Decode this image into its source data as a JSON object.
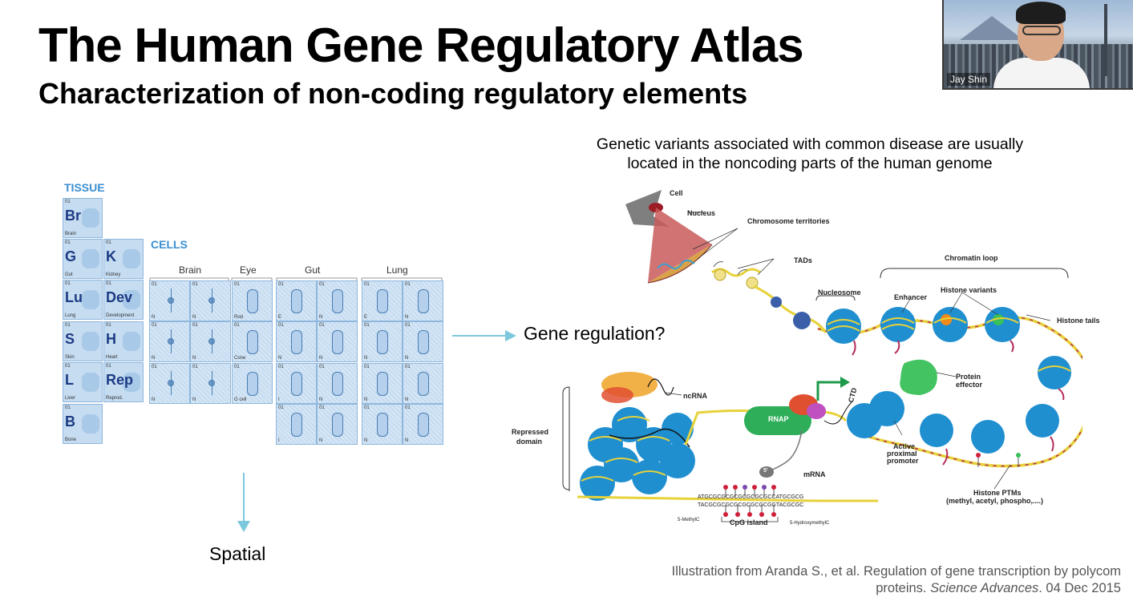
{
  "slide": {
    "title": "The Human Gene Regulatory Atlas",
    "subtitle": "Characterization of non-coding regulatory elements",
    "genetic_text_line1": "Genetic variants associated with common disease are usually",
    "genetic_text_line2": "located in the noncoding parts of the human genome",
    "gene_regulation": "Gene regulation?",
    "spatial": "Spatial",
    "citation_line1": "Illustration from Aranda S., et al. Regulation of gene transcription by polycom",
    "citation_line2_prefix": "proteins. ",
    "citation_journal": "Science Advances",
    "citation_line2_suffix": ". 04 Dec 2015"
  },
  "video": {
    "participant_name": "Jay Shin"
  },
  "tissue_table": {
    "label": "TISSUE",
    "cells": [
      {
        "num": "01",
        "sym": "Br",
        "name": "Brain"
      },
      {
        "num": "01",
        "sym": "G",
        "name": "Gut"
      },
      {
        "num": "01",
        "sym": "K",
        "name": "Kidney"
      },
      {
        "num": "01",
        "sym": "Lu",
        "name": "Lung"
      },
      {
        "num": "01",
        "sym": "Dev",
        "name": "Development"
      },
      {
        "num": "01",
        "sym": "S",
        "name": "Skin"
      },
      {
        "num": "01",
        "sym": "H",
        "name": "Heart"
      },
      {
        "num": "01",
        "sym": "L",
        "name": "Liver"
      },
      {
        "num": "01",
        "sym": "Rep",
        "name": "Reprod."
      },
      {
        "num": "01",
        "sym": "B",
        "name": "Bone"
      }
    ]
  },
  "cells_table": {
    "label": "CELLS",
    "groups": [
      "Brain",
      "Eye",
      "Gut",
      "Lung"
    ],
    "num": "01",
    "letters": {
      "n": "N",
      "e": "E",
      "i": "I",
      "rod": "Rod",
      "cone": "Cone",
      "gcell": "G cell"
    }
  },
  "diagram_labels": {
    "cell": "Cell",
    "nucleus": "Nucleus",
    "chromosome_territories": "Chromosome territories",
    "tads": "TADs",
    "chromatin_loop": "Chromatin loop",
    "nucleosome": "Nucleosome",
    "enhancer": "Enhancer",
    "histone_variants": "Histone variants",
    "histone_tails": "Histone tails",
    "protein_effector_1": "Protein",
    "protein_effector_2": "effector",
    "ncrna": "ncRNA",
    "ctd": "CTD",
    "rnap": "RNAP",
    "repressed_1": "Repressed",
    "repressed_2": "domain",
    "active_1": "Active",
    "active_2": "proximal",
    "active_3": "promoter",
    "mrna": "mRNA",
    "five_prime": "5'",
    "cpg_seq_top": "ATGCGCGCGCGCGCGCGCCATGCGCG",
    "cpg_seq_bottom": "TACGCGCGCGCGCGCGCGGTACGCGC",
    "cpg_island": "CpG island",
    "methylc": "5-MethylC",
    "hydroxymethylc": "5-HydroxymethylC",
    "histone_ptms_1": "Histone PTMs",
    "histone_ptms_2": "(methyl, acetyl, phospho,....)"
  },
  "colors": {
    "accent_blue": "#3b8fd0",
    "arrow_cyan": "#7cc8dc",
    "nucleosome_blue": "#1f8fd0",
    "dna_yellow": "#e7d23a",
    "histone_red": "#b52a5a",
    "rnap_green": "#2fae5a"
  }
}
